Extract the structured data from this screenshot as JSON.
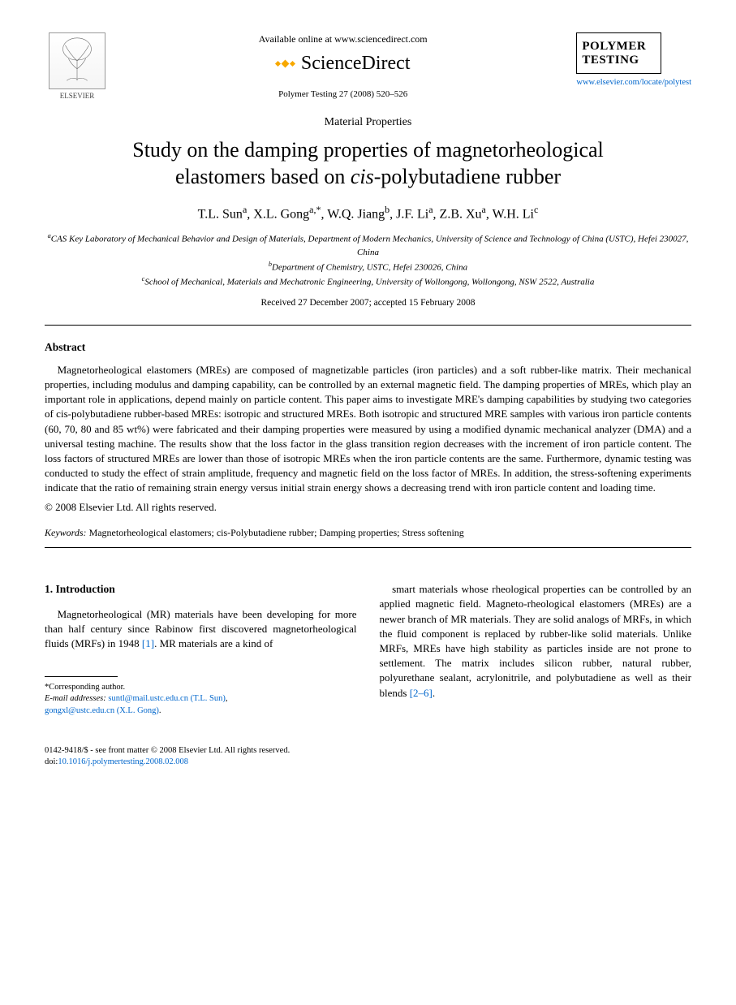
{
  "header": {
    "publisher_logo_label": "ELSEVIER",
    "available_online": "Available online at www.sciencedirect.com",
    "sciencedirect_label": "ScienceDirect",
    "citation": "Polymer Testing 27 (2008) 520–526",
    "journal_cover_title": "POLYMER TESTING",
    "journal_url": "www.elsevier.com/locate/polytest"
  },
  "article": {
    "section_label": "Material Properties",
    "title_line1": "Study on the damping properties of magnetorheological",
    "title_line2": "elastomers based on ",
    "title_italic": "cis",
    "title_line2_end": "-polybutadiene rubber",
    "authors_html": "T.L. Sun<sup>a</sup>, X.L. Gong<sup>a,*</sup>, W.Q. Jiang<sup>b</sup>, J.F. Li<sup>a</sup>, Z.B. Xu<sup>a</sup>, W.H. Li<sup>c</sup>",
    "aff_a": "<sup>a</sup>CAS Key Laboratory of Mechanical Behavior and Design of Materials, Department of Modern Mechanics, University of Science and Technology of China (USTC), Hefei 230027, China",
    "aff_b": "<sup>b</sup>Department of Chemistry, USTC, Hefei 230026, China",
    "aff_c": "<sup>c</sup>School of Mechanical, Materials and Mechatronic Engineering, University of Wollongong, Wollongong, NSW 2522, Australia",
    "dates": "Received 27 December 2007; accepted 15 February 2008"
  },
  "abstract": {
    "heading": "Abstract",
    "body": "Magnetorheological elastomers (MREs) are composed of magnetizable particles (iron particles) and a soft rubber-like matrix. Their mechanical properties, including modulus and damping capability, can be controlled by an external magnetic field. The damping properties of MREs, which play an important role in applications, depend mainly on particle content. This paper aims to investigate MRE's damping capabilities by studying two categories of cis-polybutadiene rubber-based MREs: isotropic and structured MREs. Both isotropic and structured MRE samples with various iron particle contents (60, 70, 80 and 85 wt%) were fabricated and their damping properties were measured by using a modified dynamic mechanical analyzer (DMA) and a universal testing machine. The results show that the loss factor in the glass transition region decreases with the increment of iron particle content. The loss factors of structured MREs are lower than those of isotropic MREs when the iron particle contents are the same. Furthermore, dynamic testing was conducted to study the effect of strain amplitude, frequency and magnetic field on the loss factor of MREs. In addition, the stress-softening experiments indicate that the ratio of remaining strain energy versus initial strain energy shows a decreasing trend with iron particle content and loading time.",
    "copyright": "© 2008 Elsevier Ltd. All rights reserved."
  },
  "keywords": {
    "label": "Keywords:",
    "text": " Magnetorheological elastomers; cis-Polybutadiene rubber; Damping properties; Stress softening"
  },
  "intro": {
    "heading": "1. Introduction",
    "col1": "Magnetorheological (MR) materials have been developing for more than half century since Rabinow first discovered magnetorheological fluids (MRFs) in 1948 ",
    "ref1": "[1]",
    "col1_end": ". MR materials are a kind of",
    "col2": "smart materials whose rheological properties can be controlled by an applied magnetic field. Magneto-rheological elastomers (MREs) are a newer branch of MR materials. They are solid analogs of MRFs, in which the fluid component is replaced by rubber-like solid materials. Unlike MRFs, MREs have high stability as particles inside are not prone to settlement. The matrix includes silicon rubber, natural rubber, polyurethane sealant, acrylonitrile, and polybutadiene as well as their blends ",
    "ref2": "[2–6]",
    "col2_end": "."
  },
  "footnote": {
    "corresponding": "*Corresponding author.",
    "email_label": "E-mail addresses:",
    "email1": "suntl@mail.ustc.edu.cn (T.L. Sun)",
    "email2": "gongxl@ustc.edu.cn (X.L. Gong)"
  },
  "bottom": {
    "line1": "0142-9418/$ - see front matter © 2008 Elsevier Ltd. All rights reserved.",
    "doi": "doi:",
    "doi_link": "10.1016/j.polymertesting.2008.02.008"
  },
  "colors": {
    "link": "#0066cc",
    "sd_orange": "#f7a800",
    "text": "#000000",
    "bg": "#ffffff"
  }
}
